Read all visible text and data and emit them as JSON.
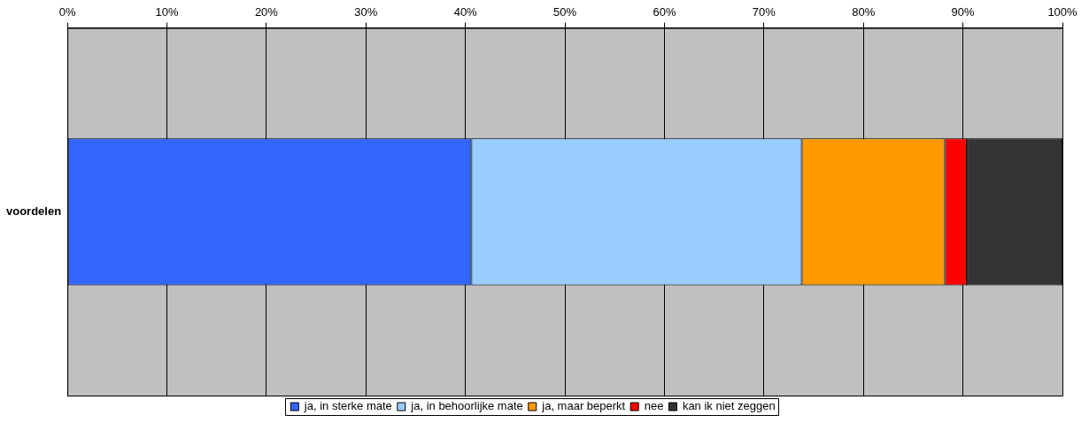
{
  "chart_data": {
    "type": "bar",
    "orientation": "horizontal",
    "stacked": true,
    "categories": [
      "voordelen"
    ],
    "series": [
      {
        "name": "ja, in sterke mate",
        "color": "#3366ff",
        "values": [
          40.6
        ]
      },
      {
        "name": "ja, in behoorlijke mate",
        "color": "#99ccff",
        "values": [
          33.2
        ]
      },
      {
        "name": "ja, maar beperkt",
        "color": "#ff9900",
        "values": [
          14.4
        ]
      },
      {
        "name": "nee",
        "color": "#ff0000",
        "values": [
          2.2
        ]
      },
      {
        "name": "kan ik niet zeggen",
        "color": "#333333",
        "values": [
          9.6
        ]
      }
    ],
    "xlim": [
      0,
      100
    ],
    "xticks": [
      {
        "value": 0,
        "label": "0%"
      },
      {
        "value": 10,
        "label": "10%"
      },
      {
        "value": 20,
        "label": "20%"
      },
      {
        "value": 30,
        "label": "30%"
      },
      {
        "value": 40,
        "label": "40%"
      },
      {
        "value": 50,
        "label": "50%"
      },
      {
        "value": 60,
        "label": "60%"
      },
      {
        "value": 70,
        "label": "70%"
      },
      {
        "value": 80,
        "label": "80%"
      },
      {
        "value": 90,
        "label": "90%"
      },
      {
        "value": 100,
        "label": "100%"
      }
    ],
    "grid": "x",
    "legend": "bottom"
  }
}
